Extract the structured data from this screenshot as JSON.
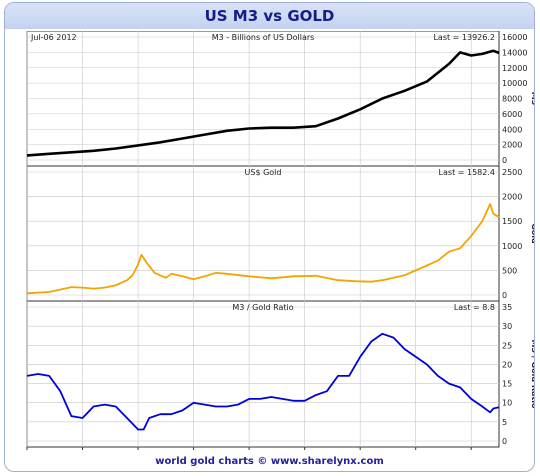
{
  "title": "US M3 vs GOLD",
  "footer": "world gold charts © www.sharelynx.com",
  "date_label": "Jul-06 2012",
  "colors": {
    "m3": "#000000",
    "gold": "#f3a400",
    "ratio": "#0000dd",
    "title": "#1a1a8a",
    "footer": "#222299"
  },
  "chart_data": [
    {
      "type": "line",
      "title": "M3 - Billions of US Dollars",
      "last_label": "Last = 13926.2",
      "ylabel": "M3",
      "ylim": [
        0,
        16000
      ],
      "yticks": [
        "0",
        "2000",
        "4000",
        "6000",
        "8000",
        "10000",
        "12000",
        "14000",
        "16000"
      ],
      "xlim": [
        1970,
        2012.5
      ],
      "xticks": [
        "1970",
        "1975",
        "1980",
        "1985",
        "1990",
        "1995",
        "2000",
        "2005",
        "2010"
      ],
      "grid": true,
      "series": [
        {
          "name": "M3",
          "x": [
            1970,
            1972,
            1974,
            1976,
            1978,
            1980,
            1982,
            1984,
            1986,
            1988,
            1990,
            1992,
            1994,
            1996,
            1998,
            2000,
            2002,
            2004,
            2006,
            2008,
            2009,
            2010,
            2011,
            2012,
            2012.5
          ],
          "values": [
            600,
            800,
            1000,
            1200,
            1500,
            1900,
            2300,
            2800,
            3300,
            3800,
            4100,
            4200,
            4200,
            4400,
            5400,
            6600,
            8000,
            9000,
            10200,
            12500,
            14000,
            13600,
            13800,
            14200,
            13926
          ]
        }
      ]
    },
    {
      "type": "line",
      "title": "US$ Gold",
      "last_label": "Last = 1582.4",
      "ylabel": "Gold",
      "ylim": [
        0,
        2500
      ],
      "yticks": [
        "0",
        "500",
        "1000",
        "1500",
        "2000",
        "2500"
      ],
      "xlim": [
        1970,
        2012.5
      ],
      "xticks": [
        "1970",
        "1975",
        "1980",
        "1985",
        "1990",
        "1995",
        "2000",
        "2005",
        "2010"
      ],
      "grid": true,
      "series": [
        {
          "name": "US$ Gold",
          "x": [
            1970,
            1972,
            1974,
            1975,
            1976,
            1977,
            1978,
            1979,
            1979.5,
            1980.0,
            1980.3,
            1980.8,
            1981.5,
            1982.5,
            1983,
            1984,
            1985,
            1986,
            1987,
            1988,
            1990,
            1992,
            1994,
            1996,
            1998,
            1999.5,
            2001,
            2002,
            2004,
            2006,
            2007,
            2008,
            2009,
            2010,
            2011,
            2011.7,
            2012,
            2012.5
          ],
          "values": [
            35,
            60,
            160,
            150,
            130,
            150,
            200,
            300,
            400,
            620,
            820,
            650,
            450,
            350,
            430,
            380,
            320,
            380,
            450,
            430,
            380,
            340,
            380,
            390,
            300,
            280,
            270,
            300,
            400,
            600,
            700,
            880,
            950,
            1200,
            1500,
            1850,
            1650,
            1582
          ]
        }
      ]
    },
    {
      "type": "line",
      "title": "M3 / Gold Ratio",
      "last_label": "Last = 8.8",
      "ylabel": "M3 / Gold Ratio",
      "ylim": [
        0,
        35
      ],
      "yticks": [
        "0",
        "5",
        "10",
        "15",
        "20",
        "25",
        "30",
        "35"
      ],
      "xlim": [
        1970,
        2012.5
      ],
      "xticks": [
        "1970",
        "1975",
        "1980",
        "1985",
        "1990",
        "1995",
        "2000",
        "2005",
        "2010"
      ],
      "grid": true,
      "series": [
        {
          "name": "M3 / Gold Ratio",
          "x": [
            1970,
            1971,
            1972,
            1973,
            1974,
            1975,
            1976,
            1977,
            1978,
            1979,
            1980,
            1980.5,
            1981,
            1982,
            1983,
            1984,
            1985,
            1986,
            1987,
            1988,
            1989,
            1990,
            1991,
            1992,
            1993,
            1994,
            1995,
            1996,
            1997,
            1998,
            1999,
            2000,
            2001,
            2002,
            2003,
            2004,
            2005,
            2006,
            2007,
            2008,
            2009,
            2010,
            2011,
            2011.7,
            2012,
            2012.5
          ],
          "values": [
            17,
            17.5,
            17,
            13,
            6.5,
            6,
            9,
            9.5,
            9,
            6,
            3,
            3,
            6,
            7,
            7,
            8,
            10,
            9.5,
            9,
            9,
            9.5,
            11,
            11,
            11.5,
            11,
            10.5,
            10.5,
            12,
            13,
            17,
            17,
            22,
            26,
            28,
            27,
            24,
            22,
            20,
            17,
            15,
            14,
            11,
            9,
            7.5,
            8.5,
            8.8
          ]
        }
      ]
    }
  ]
}
